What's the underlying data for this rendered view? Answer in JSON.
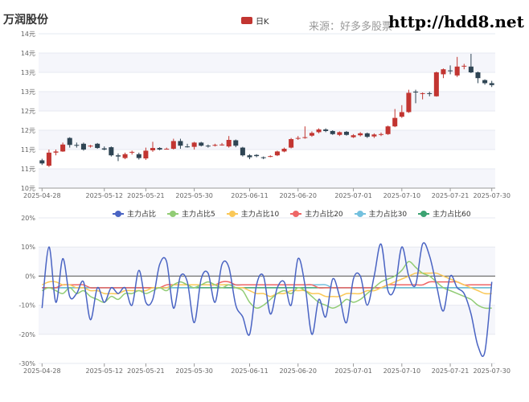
{
  "header": {
    "title": "万润股份",
    "source": "来源：好多多股票",
    "site": "http://hdd8.net"
  },
  "colors": {
    "up": "#c23531",
    "down": "#2f4554",
    "band": "#f5f6fb",
    "grid": "#e6e8f0",
    "axis": "#666666"
  },
  "chart_data": [
    {
      "type": "candlestick",
      "legend": [
        "日K"
      ],
      "y_ticks": [
        "10元",
        "11元",
        "11元",
        "12元",
        "12元",
        "13元",
        "13元",
        "14元",
        "14元"
      ],
      "ylim": [
        10.0,
        14.0
      ],
      "x_ticks": [
        "2025-04-28",
        "2025-05-12",
        "2025-05-21",
        "2025-05-30",
        "2025-06-11",
        "2025-06-20",
        "2025-07-01",
        "2025-07-10",
        "2025-07-21",
        "2025-07-30"
      ],
      "candles": [
        [
          10.72,
          10.64,
          10.6,
          10.76
        ],
        [
          10.58,
          10.92,
          10.55,
          11.0
        ],
        [
          10.92,
          10.95,
          10.85,
          11.0
        ],
        [
          10.95,
          11.13,
          10.94,
          11.18
        ],
        [
          11.3,
          11.12,
          11.05,
          11.32
        ],
        [
          11.12,
          11.1,
          11.05,
          11.18
        ],
        [
          11.15,
          11.0,
          10.97,
          11.18
        ],
        [
          11.1,
          11.1,
          11.05,
          11.12
        ],
        [
          11.15,
          11.04,
          11.02,
          11.17
        ],
        [
          11.03,
          11.0,
          10.98,
          11.08
        ],
        [
          11.06,
          10.85,
          10.82,
          11.08
        ],
        [
          10.85,
          10.82,
          10.7,
          10.9
        ],
        [
          10.78,
          10.88,
          10.75,
          10.92
        ],
        [
          10.92,
          10.94,
          10.87,
          10.97
        ],
        [
          10.88,
          10.78,
          10.74,
          10.92
        ],
        [
          10.77,
          10.97,
          10.73,
          11.05
        ],
        [
          10.98,
          11.04,
          10.94,
          11.2
        ],
        [
          11.04,
          11.0,
          10.98,
          11.06
        ],
        [
          11.02,
          11.02,
          11.0,
          11.05
        ],
        [
          11.02,
          11.22,
          11.0,
          11.28
        ],
        [
          11.22,
          11.1,
          11.02,
          11.28
        ],
        [
          11.08,
          11.07,
          11.05,
          11.15
        ],
        [
          11.07,
          11.18,
          11.0,
          11.2
        ],
        [
          11.18,
          11.1,
          11.08,
          11.2
        ],
        [
          11.1,
          11.08,
          11.05,
          11.13
        ],
        [
          11.1,
          11.12,
          11.08,
          11.15
        ],
        [
          11.12,
          11.13,
          11.1,
          11.17
        ],
        [
          11.08,
          11.25,
          11.05,
          11.35
        ],
        [
          11.24,
          11.1,
          11.06,
          11.26
        ],
        [
          11.05,
          10.85,
          10.82,
          11.07
        ],
        [
          10.85,
          10.8,
          10.75,
          10.88
        ],
        [
          10.86,
          10.83,
          10.8,
          10.88
        ],
        [
          10.8,
          10.78,
          10.75,
          10.82
        ],
        [
          10.82,
          10.83,
          10.8,
          10.85
        ],
        [
          10.85,
          10.95,
          10.83,
          10.97
        ],
        [
          10.95,
          11.02,
          10.93,
          11.05
        ],
        [
          11.05,
          11.27,
          11.03,
          11.3
        ],
        [
          11.3,
          11.3,
          11.25,
          11.35
        ],
        [
          11.3,
          11.32,
          11.28,
          11.6
        ],
        [
          11.36,
          11.43,
          11.33,
          11.47
        ],
        [
          11.45,
          11.52,
          11.42,
          11.55
        ],
        [
          11.52,
          11.48,
          11.45,
          11.55
        ],
        [
          11.48,
          11.4,
          11.38,
          11.5
        ],
        [
          11.38,
          11.45,
          11.35,
          11.47
        ],
        [
          11.46,
          11.38,
          11.36,
          11.48
        ],
        [
          11.32,
          11.37,
          11.3,
          11.4
        ],
        [
          11.37,
          11.42,
          11.34,
          11.45
        ],
        [
          11.42,
          11.33,
          11.3,
          11.44
        ],
        [
          11.34,
          11.39,
          11.3,
          11.42
        ],
        [
          11.38,
          11.4,
          11.35,
          11.44
        ],
        [
          11.4,
          11.6,
          11.38,
          11.62
        ],
        [
          11.6,
          11.82,
          11.58,
          12.05
        ],
        [
          11.85,
          11.97,
          11.82,
          12.15
        ],
        [
          11.97,
          12.47,
          11.95,
          12.55
        ],
        [
          12.5,
          12.48,
          12.2,
          12.55
        ],
        [
          12.45,
          12.46,
          12.3,
          12.48
        ],
        [
          12.46,
          12.45,
          12.38,
          12.5
        ],
        [
          12.38,
          13.0,
          12.37,
          13.02
        ],
        [
          12.95,
          13.08,
          12.85,
          13.1
        ],
        [
          13.05,
          13.03,
          12.95,
          13.18
        ],
        [
          12.92,
          13.15,
          12.88,
          13.4
        ],
        [
          13.15,
          13.17,
          13.08,
          13.22
        ],
        [
          13.15,
          13.0,
          12.98,
          13.48
        ],
        [
          13.0,
          12.85,
          12.72,
          13.02
        ],
        [
          12.8,
          12.72,
          12.68,
          12.82
        ],
        [
          12.72,
          12.67,
          12.62,
          12.78
        ]
      ]
    },
    {
      "type": "line",
      "y_ticks": [
        "20%",
        "10%",
        "0%",
        "-10%",
        "-20%",
        "-30%"
      ],
      "ylim": [
        -30,
        20
      ],
      "x_ticks": [
        "2025-04-28",
        "2025-05-12",
        "2025-05-21",
        "2025-05-30",
        "2025-06-11",
        "2025-06-20",
        "2025-07-01",
        "2025-07-10",
        "2025-07-21",
        "2025-07-30"
      ],
      "series": [
        {
          "name": "主力占比",
          "color": "#4a64c3",
          "values": [
            -11,
            10,
            -9,
            6,
            -7,
            -6,
            -2,
            -15,
            -4,
            -9,
            -4,
            -6,
            -4,
            -10,
            2,
            -9,
            -8,
            4,
            5,
            -11,
            0,
            -2,
            -16,
            -1,
            1,
            -9,
            4,
            3,
            -10,
            -14,
            -20,
            -3,
            0,
            -13,
            -4,
            -2,
            -10,
            6,
            -3,
            -20,
            -8,
            -14,
            -1,
            -7,
            -16,
            -1,
            0,
            -10,
            0,
            11,
            -5,
            -4,
            10,
            0,
            -3,
            11,
            7,
            -3,
            -12,
            0,
            -4,
            -6,
            -13,
            -24,
            -26,
            -2
          ]
        },
        {
          "name": "主力占比5",
          "color": "#91cc75",
          "values": [
            -5,
            -4,
            -5,
            -6,
            -4,
            -6,
            -5,
            -7,
            -8,
            -9,
            -7,
            -8,
            -6,
            -6,
            -5,
            -6,
            -5,
            -4,
            -5,
            -3,
            -2,
            -3,
            -4,
            -3,
            -2,
            -3,
            -4,
            -3,
            -4,
            -5,
            -9,
            -11,
            -10,
            -8,
            -6,
            -5,
            -6,
            -4,
            -5,
            -7,
            -9,
            -10,
            -11,
            -10,
            -8,
            -9,
            -8,
            -6,
            -4,
            -2,
            -1,
            0,
            2,
            5,
            3,
            1,
            0,
            -2,
            -4,
            -5,
            -6,
            -7,
            -8,
            -10,
            -11,
            -11
          ]
        },
        {
          "name": "主力占比10",
          "color": "#fac858",
          "values": [
            -3,
            -2,
            -2,
            -3,
            -3,
            -4,
            -4,
            -5,
            -5,
            -6,
            -6,
            -6,
            -5,
            -5,
            -5,
            -5,
            -4,
            -4,
            -4,
            -3,
            -3,
            -3,
            -3,
            -3,
            -3,
            -3,
            -3,
            -3,
            -4,
            -4,
            -5,
            -6,
            -6,
            -7,
            -6,
            -6,
            -5,
            -5,
            -5,
            -6,
            -6,
            -7,
            -7,
            -7,
            -6,
            -6,
            -6,
            -5,
            -5,
            -4,
            -3,
            -2,
            -1,
            0,
            1,
            1,
            1,
            1,
            0,
            -1,
            -2,
            -3,
            -4,
            -5,
            -6,
            -6
          ]
        },
        {
          "name": "主力占比20",
          "color": "#ee6666",
          "values": [
            -4,
            -4,
            -4,
            -3,
            -3,
            -3,
            -3,
            -4,
            -4,
            -4,
            -4,
            -4,
            -4,
            -4,
            -4,
            -4,
            -4,
            -4,
            -3,
            -3,
            -3,
            -3,
            -3,
            -3,
            -3,
            -3,
            -2,
            -2,
            -3,
            -3,
            -3,
            -3,
            -3,
            -3,
            -3,
            -3,
            -3,
            -3,
            -3,
            -3,
            -4,
            -4,
            -4,
            -4,
            -4,
            -4,
            -4,
            -4,
            -4,
            -4,
            -3,
            -3,
            -3,
            -3,
            -3,
            -3,
            -2,
            -2,
            -2,
            -2,
            -2,
            -3,
            -3,
            -3,
            -3,
            -3
          ]
        },
        {
          "name": "主力占比30",
          "color": "#73c0de",
          "values": [
            -4,
            -4,
            -4,
            -4,
            -4,
            -4,
            -4,
            -4,
            -4,
            -4,
            -4,
            -4,
            -4,
            -4,
            -4,
            -4,
            -4,
            -4,
            -4,
            -4,
            -4,
            -4,
            -4,
            -3,
            -3,
            -3,
            -3,
            -3,
            -3,
            -3,
            -3,
            -3,
            -3,
            -3,
            -3,
            -3,
            -3,
            -3,
            -3,
            -3,
            -3,
            -3,
            -4,
            -4,
            -4,
            -4,
            -4,
            -4,
            -4,
            -4,
            -4,
            -4,
            -4,
            -4,
            -4,
            -4,
            -4,
            -4,
            -4,
            -4,
            -4,
            -4,
            -4,
            -4,
            -4,
            -4
          ]
        },
        {
          "name": "主力占比60",
          "color": "#3ba272",
          "values": [
            -4,
            -4,
            -4,
            -4,
            -4,
            -4,
            -4,
            -4,
            -4,
            -4,
            -4,
            -4,
            -4,
            -4,
            -4,
            -4,
            -4,
            -4,
            -4,
            -4,
            -4,
            -4,
            -4,
            -4,
            -4,
            -4,
            -4,
            -4,
            -4,
            -4,
            -4,
            -4,
            -4,
            -4,
            -4,
            -4,
            -4,
            -4,
            -4,
            -4,
            -4,
            -4,
            -4,
            -4,
            -4,
            -4,
            -4,
            -4,
            -4,
            -4,
            -4,
            -4,
            -4,
            -4,
            -4,
            -4,
            -4,
            -4,
            -4,
            -4,
            -4,
            -4,
            -4,
            -4,
            -4,
            -4
          ]
        }
      ]
    }
  ]
}
